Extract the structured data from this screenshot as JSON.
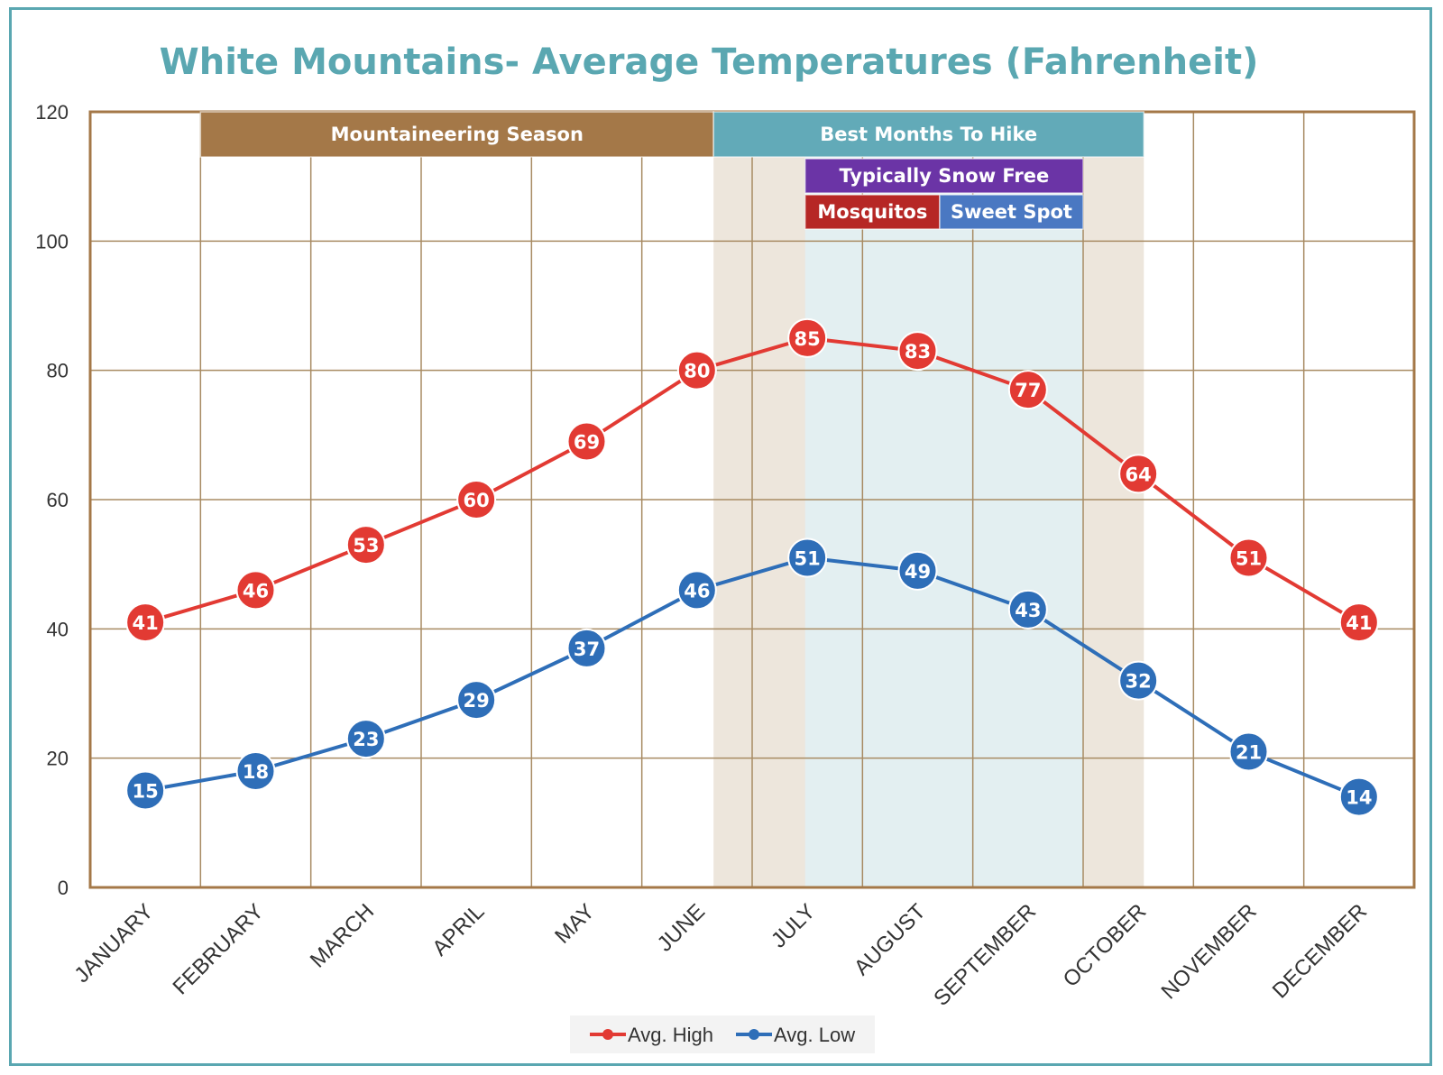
{
  "chart_data": {
    "type": "line",
    "title": "White Mountains- Average Temperatures (Fahrenheit)",
    "categories": [
      "JANUARY",
      "FEBRUARY",
      "MARCH",
      "APRIL",
      "MAY",
      "JUNE",
      "JULY",
      "AUGUST",
      "SEPTEMBER",
      "OCTOBER",
      "NOVEMBER",
      "DECEMBER"
    ],
    "ylim": [
      0,
      120
    ],
    "yticks": [
      0,
      20,
      40,
      60,
      80,
      100,
      120
    ],
    "grid": true,
    "legend_position": "bottom",
    "series": [
      {
        "name": "Avg. High",
        "color": "#e23a33",
        "values": [
          41,
          46,
          53,
          60,
          69,
          80,
          85,
          83,
          77,
          64,
          51,
          41
        ]
      },
      {
        "name": "Avg. Low",
        "color": "#2e6eb8",
        "values": [
          15,
          18,
          23,
          29,
          37,
          46,
          51,
          49,
          43,
          32,
          21,
          14
        ]
      }
    ],
    "bands": [
      {
        "label": "Mountaineering Season",
        "color": "#a47848",
        "from": 0.5,
        "to": 5.15,
        "row": 0
      },
      {
        "label": "Best Months To Hike",
        "color": "#62aab8",
        "from": 5.15,
        "to": 9.05,
        "row": 0
      },
      {
        "label": "Typically Snow Free",
        "color": "#6b34a6",
        "from": 5.98,
        "to": 8.5,
        "row": 1
      },
      {
        "label": "Mosquitos",
        "color": "#b62725",
        "from": 5.98,
        "to": 7.2,
        "row": 2
      },
      {
        "label": "Sweet Spot",
        "color": "#4a78c2",
        "from": 7.2,
        "to": 8.5,
        "row": 2
      }
    ],
    "shaded_regions": [
      {
        "from": 5.15,
        "to": 9.05,
        "color": "#ede6dc"
      },
      {
        "from": 5.98,
        "to": 8.5,
        "color": "#e3eff1"
      }
    ]
  }
}
